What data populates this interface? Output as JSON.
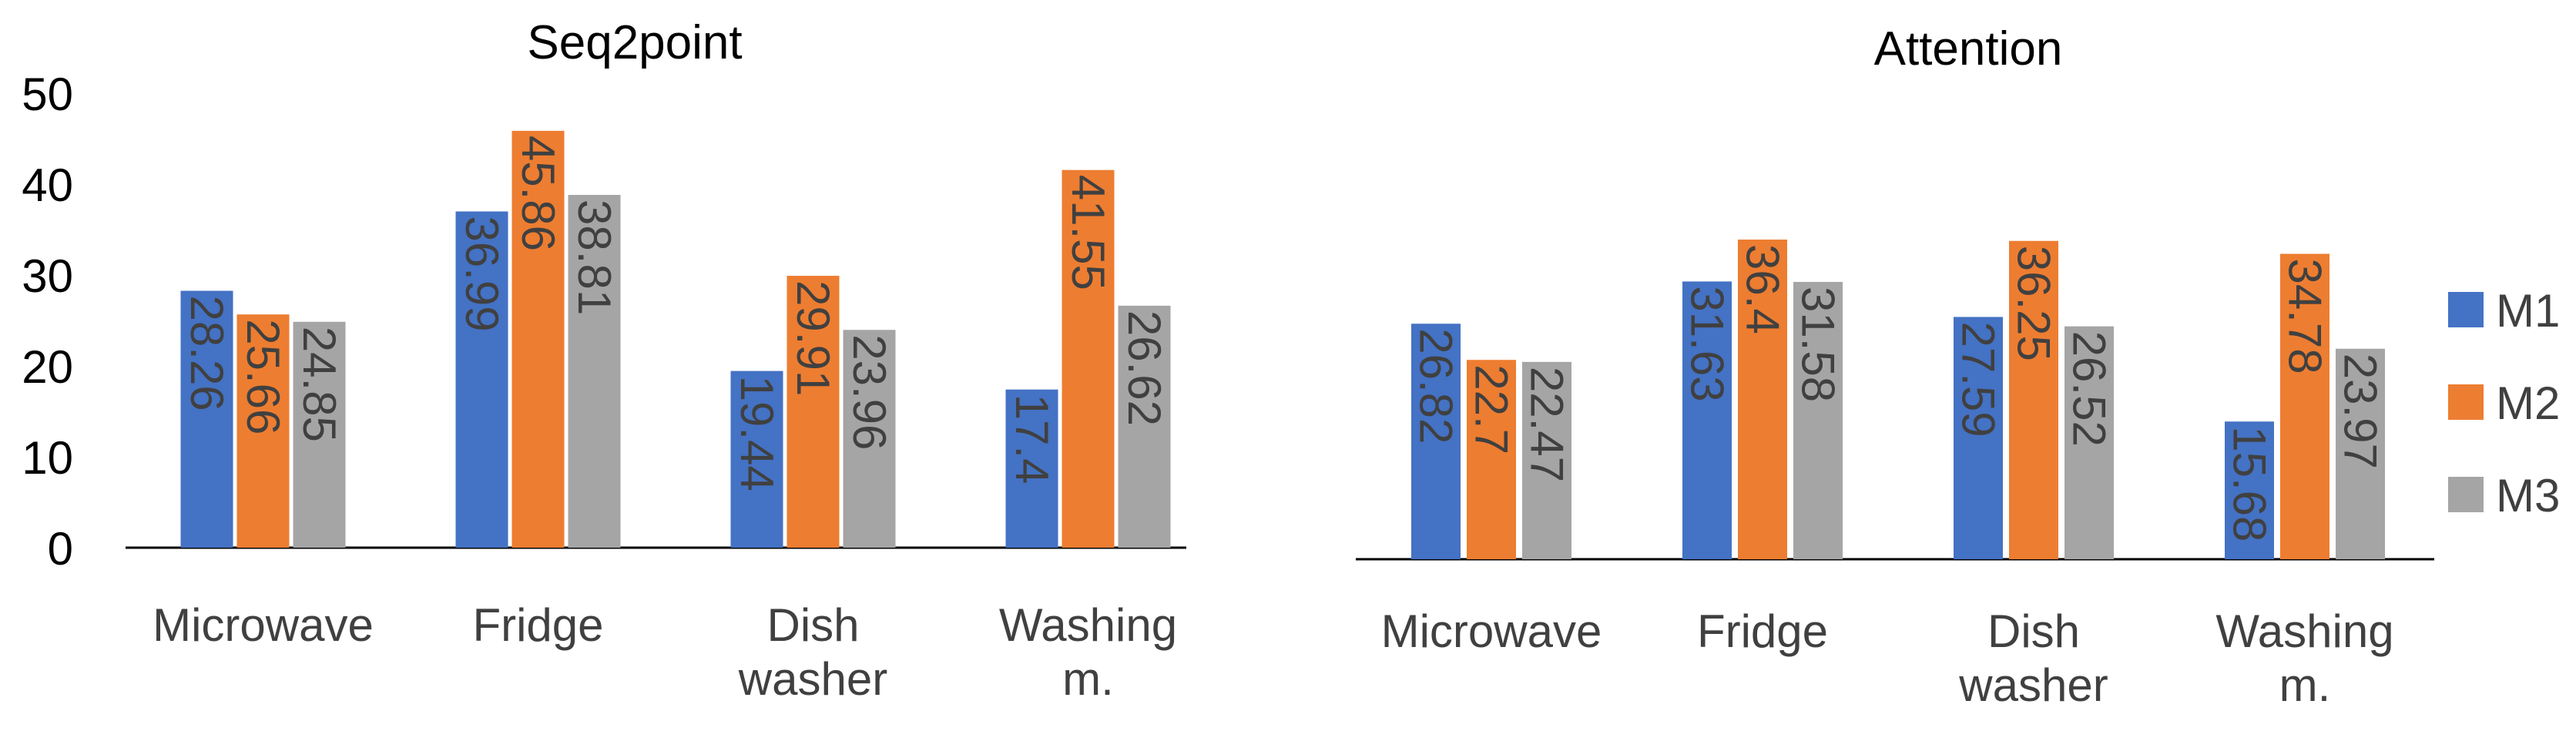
{
  "chart_data": [
    {
      "type": "bar",
      "title": "Seq2point",
      "categories": [
        "Microwave",
        "Fridge",
        "Dish\nwasher",
        "Washing\nm."
      ],
      "series": [
        {
          "name": "M1",
          "color": "#4472C4",
          "values": [
            28.26,
            36.99,
            19.44,
            17.4
          ],
          "labels": [
            "28.26",
            "36.99",
            "19.44",
            "17.4"
          ]
        },
        {
          "name": "M2",
          "color": "#ED7D31",
          "values": [
            25.66,
            45.86,
            29.91,
            41.55
          ],
          "labels": [
            "25.66",
            "45.86",
            "29.91",
            "41.55"
          ]
        },
        {
          "name": "M3",
          "color": "#A5A5A5",
          "values": [
            24.85,
            38.81,
            23.96,
            26.62
          ],
          "labels": [
            "24.85",
            "38.81",
            "23.96",
            "26.62"
          ]
        }
      ],
      "ylim": [
        0,
        50
      ],
      "yticks": [
        "0",
        "10",
        "20",
        "30",
        "40",
        "50"
      ],
      "grid": false,
      "xlabel": "",
      "ylabel": ""
    },
    {
      "type": "bar",
      "title": "Attention",
      "categories": [
        "Microwave",
        "Fridge",
        "Dish\nwasher",
        "Washing\nm."
      ],
      "series": [
        {
          "name": "M1",
          "color": "#4472C4",
          "values": [
            26.82,
            31.63,
            27.59,
            15.68
          ],
          "labels": [
            "26.82",
            "31.63",
            "27.59",
            "15.68"
          ]
        },
        {
          "name": "M2",
          "color": "#ED7D31",
          "values": [
            22.7,
            36.4,
            36.25,
            34.78
          ],
          "labels": [
            "22.7",
            "36.4",
            "36.25",
            "34.78"
          ]
        },
        {
          "name": "M3",
          "color": "#A5A5A5",
          "values": [
            22.47,
            31.58,
            26.52,
            23.97
          ],
          "labels": [
            "22.47",
            "31.58",
            "26.52",
            "23.97"
          ]
        }
      ],
      "ylim": [
        0,
        50
      ],
      "grid": false,
      "xlabel": "",
      "ylabel": "",
      "legend": {
        "placement": "right",
        "entries": [
          "M1",
          "M2",
          "M3"
        ]
      }
    }
  ],
  "colors": {
    "M1": "#4472C4",
    "M2": "#ED7D31",
    "M3": "#A5A5A5",
    "text": "#404040",
    "axis": "#000000"
  }
}
